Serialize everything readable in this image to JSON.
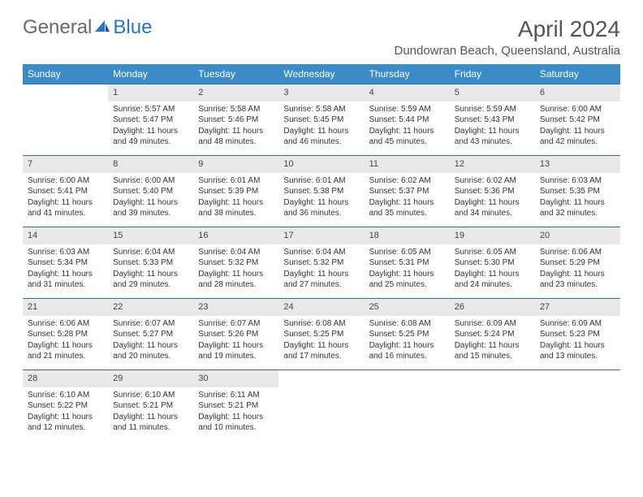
{
  "logo": {
    "part1": "General",
    "part2": "Blue"
  },
  "title": "April 2024",
  "location": "Dundowran Beach, Queensland, Australia",
  "colors": {
    "header_bg": "#3b8bc9",
    "header_text": "#ffffff",
    "border": "#2f6da3",
    "daynum_bg": "#e9e9e9",
    "text": "#333333"
  },
  "dayHeaders": [
    "Sunday",
    "Monday",
    "Tuesday",
    "Wednesday",
    "Thursday",
    "Friday",
    "Saturday"
  ],
  "weeks": [
    [
      null,
      {
        "n": "1",
        "sr": "5:57 AM",
        "ss": "5:47 PM",
        "dl": "11 hours and 49 minutes."
      },
      {
        "n": "2",
        "sr": "5:58 AM",
        "ss": "5:46 PM",
        "dl": "11 hours and 48 minutes."
      },
      {
        "n": "3",
        "sr": "5:58 AM",
        "ss": "5:45 PM",
        "dl": "11 hours and 46 minutes."
      },
      {
        "n": "4",
        "sr": "5:59 AM",
        "ss": "5:44 PM",
        "dl": "11 hours and 45 minutes."
      },
      {
        "n": "5",
        "sr": "5:59 AM",
        "ss": "5:43 PM",
        "dl": "11 hours and 43 minutes."
      },
      {
        "n": "6",
        "sr": "6:00 AM",
        "ss": "5:42 PM",
        "dl": "11 hours and 42 minutes."
      }
    ],
    [
      {
        "n": "7",
        "sr": "6:00 AM",
        "ss": "5:41 PM",
        "dl": "11 hours and 41 minutes."
      },
      {
        "n": "8",
        "sr": "6:00 AM",
        "ss": "5:40 PM",
        "dl": "11 hours and 39 minutes."
      },
      {
        "n": "9",
        "sr": "6:01 AM",
        "ss": "5:39 PM",
        "dl": "11 hours and 38 minutes."
      },
      {
        "n": "10",
        "sr": "6:01 AM",
        "ss": "5:38 PM",
        "dl": "11 hours and 36 minutes."
      },
      {
        "n": "11",
        "sr": "6:02 AM",
        "ss": "5:37 PM",
        "dl": "11 hours and 35 minutes."
      },
      {
        "n": "12",
        "sr": "6:02 AM",
        "ss": "5:36 PM",
        "dl": "11 hours and 34 minutes."
      },
      {
        "n": "13",
        "sr": "6:03 AM",
        "ss": "5:35 PM",
        "dl": "11 hours and 32 minutes."
      }
    ],
    [
      {
        "n": "14",
        "sr": "6:03 AM",
        "ss": "5:34 PM",
        "dl": "11 hours and 31 minutes."
      },
      {
        "n": "15",
        "sr": "6:04 AM",
        "ss": "5:33 PM",
        "dl": "11 hours and 29 minutes."
      },
      {
        "n": "16",
        "sr": "6:04 AM",
        "ss": "5:32 PM",
        "dl": "11 hours and 28 minutes."
      },
      {
        "n": "17",
        "sr": "6:04 AM",
        "ss": "5:32 PM",
        "dl": "11 hours and 27 minutes."
      },
      {
        "n": "18",
        "sr": "6:05 AM",
        "ss": "5:31 PM",
        "dl": "11 hours and 25 minutes."
      },
      {
        "n": "19",
        "sr": "6:05 AM",
        "ss": "5:30 PM",
        "dl": "11 hours and 24 minutes."
      },
      {
        "n": "20",
        "sr": "6:06 AM",
        "ss": "5:29 PM",
        "dl": "11 hours and 23 minutes."
      }
    ],
    [
      {
        "n": "21",
        "sr": "6:06 AM",
        "ss": "5:28 PM",
        "dl": "11 hours and 21 minutes."
      },
      {
        "n": "22",
        "sr": "6:07 AM",
        "ss": "5:27 PM",
        "dl": "11 hours and 20 minutes."
      },
      {
        "n": "23",
        "sr": "6:07 AM",
        "ss": "5:26 PM",
        "dl": "11 hours and 19 minutes."
      },
      {
        "n": "24",
        "sr": "6:08 AM",
        "ss": "5:25 PM",
        "dl": "11 hours and 17 minutes."
      },
      {
        "n": "25",
        "sr": "6:08 AM",
        "ss": "5:25 PM",
        "dl": "11 hours and 16 minutes."
      },
      {
        "n": "26",
        "sr": "6:09 AM",
        "ss": "5:24 PM",
        "dl": "11 hours and 15 minutes."
      },
      {
        "n": "27",
        "sr": "6:09 AM",
        "ss": "5:23 PM",
        "dl": "11 hours and 13 minutes."
      }
    ],
    [
      {
        "n": "28",
        "sr": "6:10 AM",
        "ss": "5:22 PM",
        "dl": "11 hours and 12 minutes."
      },
      {
        "n": "29",
        "sr": "6:10 AM",
        "ss": "5:21 PM",
        "dl": "11 hours and 11 minutes."
      },
      {
        "n": "30",
        "sr": "6:11 AM",
        "ss": "5:21 PM",
        "dl": "11 hours and 10 minutes."
      },
      null,
      null,
      null,
      null
    ]
  ],
  "labels": {
    "sunrise": "Sunrise:",
    "sunset": "Sunset:",
    "daylight": "Daylight:"
  }
}
